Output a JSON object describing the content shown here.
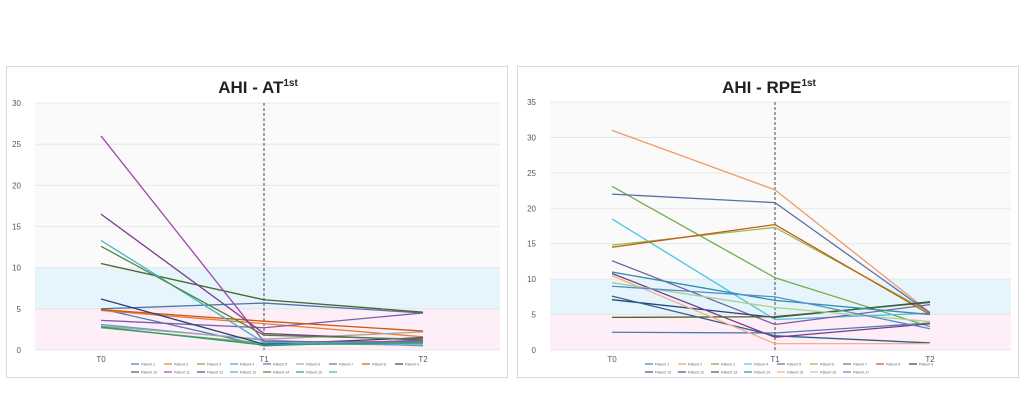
{
  "chart_data": [
    {
      "type": "line",
      "title": "AHI - AT",
      "title_sup": "1st",
      "categories": [
        "T0",
        "T1",
        "T2"
      ],
      "ylim": [
        0,
        30
      ],
      "yticks": [
        0,
        5,
        10,
        15,
        20,
        25,
        30
      ],
      "bands": [
        {
          "from": 0,
          "to": 5,
          "color": "#fdeef8"
        },
        {
          "from": 5,
          "to": 10,
          "color": "#e6f5fb"
        },
        {
          "from": 10,
          "to": 30,
          "color": "#fafafa"
        }
      ],
      "divider_at": "T1",
      "legend": "bottom",
      "series": [
        {
          "name": "Patient 1",
          "color": "#4a7bb7",
          "values": [
            5.0,
            0.5,
            1.2
          ]
        },
        {
          "name": "Patient 2",
          "color": "#ed7d31",
          "values": [
            4.8,
            3.2,
            1.6
          ]
        },
        {
          "name": "Patient 3",
          "color": "#70ad47",
          "values": [
            2.7,
            0.8,
            0.6
          ]
        },
        {
          "name": "Patient 4",
          "color": "#5b9bd5",
          "values": [
            3.1,
            1.2,
            0.5
          ]
        },
        {
          "name": "Patient 5",
          "color": "#7b5ea7",
          "values": [
            3.6,
            2.7,
            4.5
          ]
        },
        {
          "name": "Patient 6",
          "color": "#a5a5a5",
          "values": [
            2.9,
            1.3,
            2.2
          ]
        },
        {
          "name": "Patient 7",
          "color": "#5b6fa8",
          "values": [
            5.0,
            5.7,
            4.5
          ]
        },
        {
          "name": "Patient 8",
          "color": "#c55a11",
          "values": [
            4.9,
            3.5,
            2.3
          ]
        },
        {
          "name": "Patient 9",
          "color": "#264478",
          "values": [
            6.2,
            0.7,
            1.5
          ]
        },
        {
          "name": "Patient 10",
          "color": "#43682b",
          "values": [
            10.5,
            6.1,
            4.6
          ]
        },
        {
          "name": "Patient 11",
          "color": "#9e48a8",
          "values": [
            26.0,
            1.0,
            1.0
          ]
        },
        {
          "name": "Patient 12",
          "color": "#7a3a8c",
          "values": [
            16.5,
            2.0,
            1.2
          ]
        },
        {
          "name": "Patient 13",
          "color": "#3fb5c9",
          "values": [
            13.3,
            0.9,
            0.8
          ]
        },
        {
          "name": "Patient 14",
          "color": "#548235",
          "values": [
            12.6,
            1.8,
            1.3
          ]
        },
        {
          "name": "Patient 15",
          "color": "#2e9e6a",
          "values": [
            2.8,
            0.6,
            0.9
          ]
        },
        {
          "name": "",
          "color": "#4bacc6",
          "values": [
            null,
            null,
            null
          ]
        }
      ]
    },
    {
      "type": "line",
      "title": "AHI - RPE",
      "title_sup": "1st",
      "categories": [
        "T0",
        "T1",
        "T2"
      ],
      "ylim": [
        0,
        35
      ],
      "yticks": [
        0,
        5,
        10,
        15,
        20,
        25,
        30,
        35
      ],
      "bands": [
        {
          "from": 0,
          "to": 5,
          "color": "#fdeef8"
        },
        {
          "from": 5,
          "to": 10,
          "color": "#e6f5fb"
        },
        {
          "from": 10,
          "to": 35,
          "color": "#fafafa"
        }
      ],
      "divider_at": "T1",
      "legend": "bottom",
      "series": [
        {
          "name": "Patient 1",
          "color": "#4a7bb7",
          "values": [
            2.5,
            2.4,
            3.8
          ]
        },
        {
          "name": "Patient 2",
          "color": "#ed9a6a",
          "values": [
            31.0,
            22.6,
            5.3
          ]
        },
        {
          "name": "Patient 3",
          "color": "#70ad47",
          "values": [
            23.1,
            10.2,
            3.3
          ]
        },
        {
          "name": "Patient 4",
          "color": "#4bc3e0",
          "values": [
            18.5,
            4.3,
            5.2
          ]
        },
        {
          "name": "Patient 5",
          "color": "#7b5ea7",
          "values": [
            12.6,
            3.6,
            6.4
          ]
        },
        {
          "name": "Patient 6",
          "color": "#8fbf5a",
          "values": [
            14.8,
            17.3,
            5.3
          ]
        },
        {
          "name": "Patient 7",
          "color": "#5b6fa8",
          "values": [
            22.0,
            20.8,
            5.2
          ]
        },
        {
          "name": "Patient 8",
          "color": "#c55a11",
          "values": [
            14.5,
            17.7,
            5.0
          ]
        },
        {
          "name": "Patient 9",
          "color": "#264478",
          "values": [
            7.1,
            4.6,
            6.8
          ]
        },
        {
          "name": "Patient 10",
          "color": "#2f5f8a",
          "values": [
            7.6,
            2.0,
            1.0
          ]
        },
        {
          "name": "Patient 12",
          "color": "#7a3a8c",
          "values": [
            10.8,
            1.8,
            3.7
          ]
        },
        {
          "name": "Patient 13",
          "color": "#43682b",
          "values": [
            4.6,
            4.7,
            6.7
          ]
        },
        {
          "name": "Patient 14",
          "color": "#2e8fa8",
          "values": [
            11.0,
            7.0,
            5.0
          ]
        },
        {
          "name": "Patient 15",
          "color": "#f4b183",
          "values": [
            10.5,
            0.9,
            0.9
          ]
        },
        {
          "name": "Patient 16",
          "color": "#a9d18e",
          "values": [
            9.5,
            6.0,
            4.0
          ]
        },
        {
          "name": "Patient 17",
          "color": "#548dd4",
          "values": [
            9.0,
            7.5,
            3.0
          ]
        }
      ]
    }
  ]
}
